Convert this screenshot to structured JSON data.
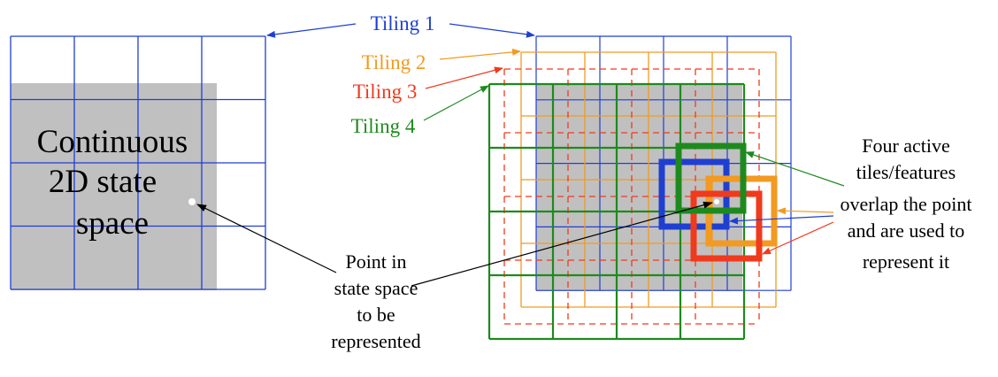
{
  "diagram": {
    "left_panel": {
      "state_space_label_lines": [
        "Continuous",
        "2D state",
        "space"
      ]
    },
    "tilings": [
      {
        "label": "Tiling 1",
        "color": "#1f3fd1",
        "style": "solid"
      },
      {
        "label": "Tiling 2",
        "color": "#f29a21",
        "style": "solid"
      },
      {
        "label": "Tiling 3",
        "color": "#f03a1c",
        "style": "dashed"
      },
      {
        "label": "Tiling 4",
        "color": "#1e8a1e",
        "style": "solid"
      }
    ],
    "point_annotation_lines": [
      "Point in",
      "state space",
      "to be",
      "represented"
    ],
    "active_tiles_annotation_lines": [
      "Four active",
      "tiles/features",
      "overlap the point",
      "and are used to",
      "represent it"
    ],
    "colors": {
      "state_space_fill": "#c0c0c0",
      "point": "#ffffff",
      "arrow": "#000000"
    }
  }
}
